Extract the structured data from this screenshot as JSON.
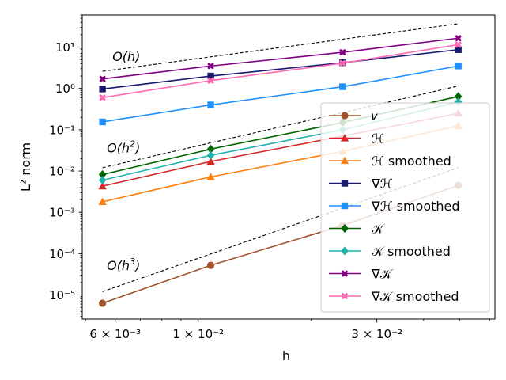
{
  "chart_data": {
    "type": "line",
    "xlabel": "h",
    "ylabel": "L² norm",
    "xscale": "log",
    "yscale": "log",
    "xlim": [
      0.0049,
      0.062
    ],
    "ylim": [
      2.6e-06,
      60
    ],
    "x": [
      0.00555,
      0.0108,
      0.0243,
      0.0495
    ],
    "xticks": [
      {
        "value": 0.006,
        "label": "6 × 10⁻³"
      },
      {
        "value": 0.01,
        "label": "1 × 10⁻²"
      },
      {
        "value": 0.03,
        "label": "3 × 10⁻²"
      }
    ],
    "yticks": [
      {
        "value": 1e-05,
        "label": "10⁻⁵"
      },
      {
        "value": 0.0001,
        "label": "10⁻⁴"
      },
      {
        "value": 0.001,
        "label": "10⁻³"
      },
      {
        "value": 0.01,
        "label": "10⁻²"
      },
      {
        "value": 0.1,
        "label": "10⁻¹"
      },
      {
        "value": 1,
        "label": "10⁰"
      },
      {
        "value": 10,
        "label": "10¹"
      }
    ],
    "series": [
      {
        "name": "𝜈",
        "color": "#a0522d",
        "marker": "circle",
        "values": [
          6.3e-06,
          5.2e-05,
          0.00048,
          0.0045
        ]
      },
      {
        "name": "ℋ",
        "color": "#d62728",
        "marker": "triangle",
        "values": [
          0.0043,
          0.017,
          0.07,
          0.25
        ]
      },
      {
        "name": "ℋ smoothed",
        "color": "#ff7f0e",
        "marker": "triangle",
        "values": [
          0.0018,
          0.0072,
          0.03,
          0.125
        ]
      },
      {
        "name": "∇ℋ",
        "color": "#191970",
        "marker": "square",
        "values": [
          0.97,
          2.0,
          4.2,
          8.7
        ]
      },
      {
        "name": "∇ℋ smoothed",
        "color": "#1e90ff",
        "marker": "square",
        "values": [
          0.155,
          0.4,
          1.1,
          3.5
        ]
      },
      {
        "name": "𝒦",
        "color": "#006400",
        "marker": "diamond",
        "values": [
          0.0082,
          0.034,
          0.15,
          0.64
        ]
      },
      {
        "name": "𝒦 smoothed",
        "color": "#20b2aa",
        "marker": "diamond",
        "values": [
          0.006,
          0.024,
          0.1,
          0.47
        ]
      },
      {
        "name": "∇𝒦",
        "color": "#800080",
        "marker": "x",
        "values": [
          1.7,
          3.5,
          7.5,
          16.5
        ]
      },
      {
        "name": "∇𝒦 smoothed",
        "color": "#ff69b4",
        "marker": "x",
        "values": [
          0.6,
          1.55,
          4.1,
          11.5
        ]
      }
    ],
    "reference_lines": [
      {
        "label": "O(h)",
        "label_main": "O(h)",
        "label_sup": "",
        "x": [
          0.00555,
          0.0495
        ],
        "y": [
          2.6,
          37
        ],
        "label_at": [
          0.0059,
          4.6
        ]
      },
      {
        "label": "O(h²)",
        "label_main": "O(h",
        "label_sup": "2",
        "x": [
          0.00555,
          0.0495
        ],
        "y": [
          0.012,
          1.15
        ],
        "label_at": [
          0.0057,
          0.028
        ]
      },
      {
        "label": "O(h³)",
        "label_main": "O(h",
        "label_sup": "3",
        "x": [
          0.00555,
          0.0495
        ],
        "y": [
          1.2e-05,
          0.012
        ],
        "label_at": [
          0.0057,
          4e-05
        ]
      }
    ],
    "grid": false,
    "legend_placement": "right"
  }
}
